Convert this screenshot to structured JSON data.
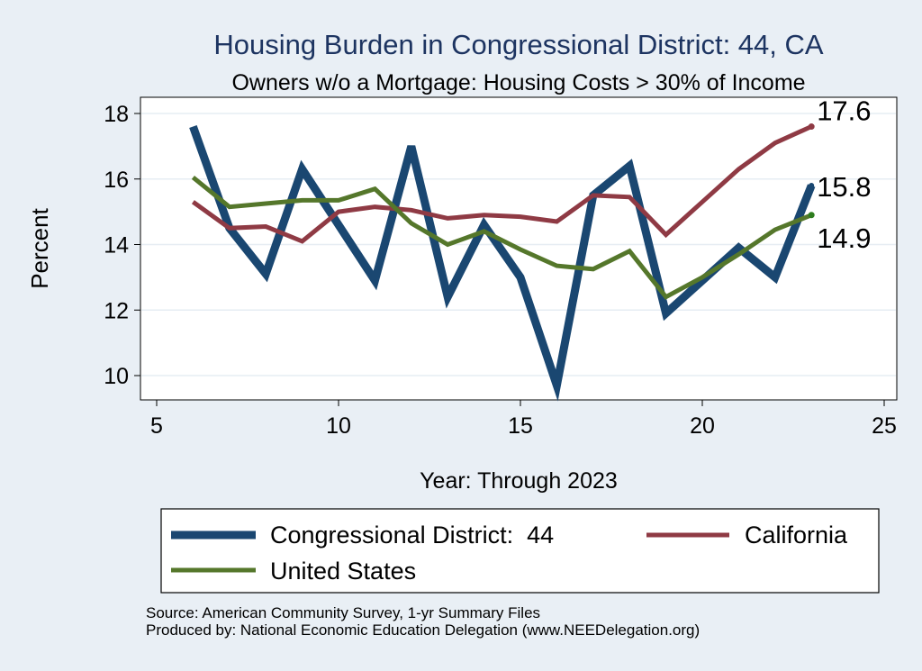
{
  "colors": {
    "background": "#e9eff5",
    "plot_background": "#ffffff",
    "title": "#1d3461",
    "district": "#1a4771",
    "california": "#8f3a44",
    "united_states": "#55772b",
    "gridline": "#e6edf3"
  },
  "chart_data": {
    "type": "line",
    "title": "Housing Burden in Congressional District:  44, CA",
    "subtitle": "Owners w/o a Mortgage: Housing Costs > 30% of Income",
    "xlabel": "Year: Through 2023",
    "ylabel": "Percent",
    "xlim": [
      5,
      25
    ],
    "ylim": [
      9.3,
      18.3
    ],
    "x_ticks": [
      5,
      10,
      15,
      20,
      25
    ],
    "y_ticks": [
      10,
      12,
      14,
      16,
      18
    ],
    "grid": true,
    "legend_placement": "bottom",
    "x": [
      6,
      7,
      8,
      9,
      10,
      11,
      12,
      13,
      14,
      15,
      16,
      17,
      18,
      19,
      20,
      21,
      22,
      23
    ],
    "series": [
      {
        "name": "Congressional District:  44",
        "color": "#1a4771",
        "values": [
          17.6,
          14.5,
          13.1,
          16.3,
          14.6,
          12.9,
          17.0,
          12.4,
          14.6,
          13.0,
          9.7,
          15.5,
          16.4,
          11.9,
          12.9,
          13.9,
          13.0,
          15.8
        ],
        "end_label": "15.8"
      },
      {
        "name": "California",
        "color": "#8f3a44",
        "values": [
          15.3,
          14.5,
          14.55,
          14.1,
          15.0,
          15.15,
          15.05,
          14.8,
          14.9,
          14.85,
          14.7,
          15.5,
          15.45,
          14.3,
          15.3,
          16.3,
          17.1,
          17.6
        ],
        "end_label": "17.6"
      },
      {
        "name": "United States",
        "color": "#55772b",
        "values": [
          16.05,
          15.15,
          15.25,
          15.35,
          15.35,
          15.7,
          14.65,
          14.0,
          14.4,
          13.85,
          13.35,
          13.25,
          13.8,
          12.4,
          13.0,
          13.7,
          14.45,
          14.9
        ],
        "end_label": "14.9"
      }
    ]
  },
  "source": {
    "line1": "Source: American Community Survey, 1-yr Summary Files",
    "line2": "Produced by: National Economic Education Delegation (www.NEEDelegation.org)"
  }
}
